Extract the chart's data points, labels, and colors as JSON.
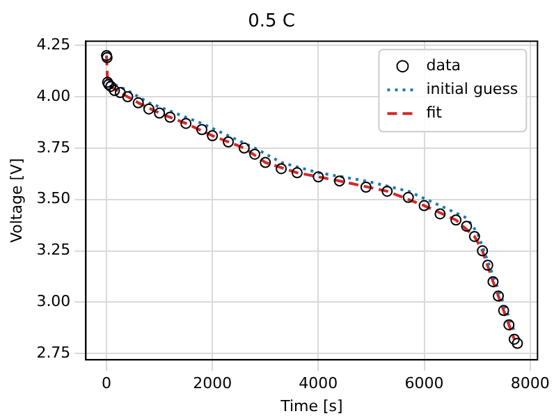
{
  "chart_data": {
    "type": "scatter",
    "title": "0.5 C",
    "xlabel": "Time [s]",
    "ylabel": "Voltage [V]",
    "xlim": [
      -390,
      8140
    ],
    "ylim": [
      2.72,
      4.27
    ],
    "xticks": [
      0,
      2000,
      4000,
      6000,
      8000
    ],
    "yticks": [
      {
        "value": 2.75,
        "label": "2.75"
      },
      {
        "value": 3.0,
        "label": "3.00"
      },
      {
        "value": 3.25,
        "label": "3.25"
      },
      {
        "value": 3.5,
        "label": "3.50"
      },
      {
        "value": 3.75,
        "label": "3.75"
      },
      {
        "value": 4.0,
        "label": "4.00"
      },
      {
        "value": 4.25,
        "label": "4.25"
      }
    ],
    "grid": true,
    "legend": "top right",
    "series": [
      {
        "name": "data",
        "type": "scatter",
        "marker": "circle",
        "color": "#000000",
        "x": [
          0,
          10,
          20,
          40,
          80,
          150,
          260,
          400,
          600,
          800,
          1000,
          1200,
          1500,
          1800,
          2000,
          2300,
          2600,
          2800,
          3000,
          3300,
          3600,
          4000,
          4400,
          4900,
          5300,
          5700,
          6000,
          6300,
          6600,
          6800,
          6950,
          7100,
          7200,
          7300,
          7400,
          7500,
          7600,
          7700,
          7760
        ],
        "values": [
          4.2,
          4.19,
          4.07,
          4.06,
          4.05,
          4.03,
          4.02,
          4.0,
          3.97,
          3.94,
          3.92,
          3.9,
          3.87,
          3.84,
          3.81,
          3.78,
          3.75,
          3.72,
          3.68,
          3.65,
          3.63,
          3.61,
          3.59,
          3.56,
          3.54,
          3.51,
          3.47,
          3.43,
          3.4,
          3.37,
          3.32,
          3.25,
          3.18,
          3.1,
          3.03,
          2.96,
          2.89,
          2.82,
          2.8
        ]
      },
      {
        "name": "initial guess",
        "type": "line",
        "line_style": "dotted",
        "color": "#1f77b4",
        "x": [
          40,
          150,
          400,
          800,
          1200,
          1800,
          2300,
          2800,
          3300,
          4000,
          4900,
          5700,
          6300,
          6800,
          7000,
          7200,
          7400,
          7600,
          7700
        ],
        "values": [
          4.08,
          4.06,
          4.03,
          3.97,
          3.93,
          3.87,
          3.81,
          3.75,
          3.68,
          3.63,
          3.59,
          3.54,
          3.47,
          3.41,
          3.34,
          3.2,
          3.06,
          2.93,
          2.86
        ]
      },
      {
        "name": "fit",
        "type": "line",
        "line_style": "dashed",
        "color": "#d62728",
        "x": [
          0,
          20,
          80,
          260,
          600,
          1000,
          1500,
          2000,
          2600,
          3000,
          3600,
          4400,
          5300,
          6000,
          6600,
          6950,
          7100,
          7300,
          7500,
          7700
        ],
        "values": [
          4.2,
          4.07,
          4.05,
          4.02,
          3.97,
          3.92,
          3.87,
          3.81,
          3.75,
          3.68,
          3.63,
          3.59,
          3.54,
          3.47,
          3.4,
          3.32,
          3.25,
          3.1,
          2.96,
          2.82
        ]
      }
    ]
  }
}
